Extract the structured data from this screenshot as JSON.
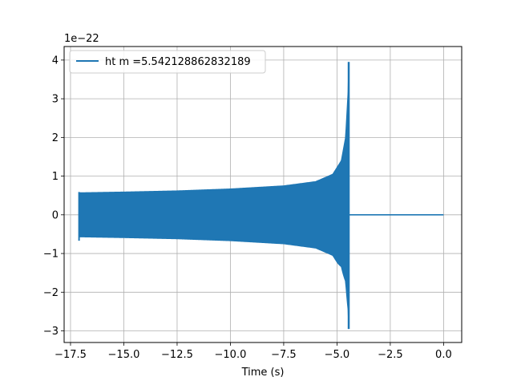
{
  "chart_data": {
    "type": "line",
    "title": "",
    "xlabel": "Time (s)",
    "ylabel": "",
    "y_offset_label": "1e−22",
    "xlim": [
      -17.8,
      0.85
    ],
    "ylim": [
      -3.3,
      4.35
    ],
    "x_ticks": [
      -17.5,
      -15.0,
      -12.5,
      -10.0,
      -7.5,
      -5.0,
      -2.5,
      0.0
    ],
    "x_tick_labels": [
      "−17.5",
      "−15.0",
      "−12.5",
      "−10.0",
      "−7.5",
      "−5.0",
      "−2.5",
      "0.0"
    ],
    "y_ticks": [
      -3,
      -2,
      -1,
      0,
      1,
      2,
      3,
      4
    ],
    "y_tick_labels": [
      "−3",
      "−2",
      "−1",
      "0",
      "1",
      "2",
      "3",
      "4"
    ],
    "grid": true,
    "legend_position": "top-left",
    "series": [
      {
        "name": "ht m =5.542128862832189",
        "color": "#1f77b4",
        "start_time": -17.1,
        "merger_time": -4.45,
        "end_time": 0.0,
        "envelope": [
          {
            "x": -17.1,
            "y": 0.57
          },
          {
            "x": -15.0,
            "y": 0.59
          },
          {
            "x": -12.5,
            "y": 0.62
          },
          {
            "x": -10.0,
            "y": 0.67
          },
          {
            "x": -7.5,
            "y": 0.75
          },
          {
            "x": -6.0,
            "y": 0.86
          },
          {
            "x": -5.2,
            "y": 1.05
          },
          {
            "x": -4.8,
            "y": 1.4
          },
          {
            "x": -4.6,
            "y": 2.0
          },
          {
            "x": -4.48,
            "y": 3.2
          },
          {
            "x": -4.45,
            "y": 3.95
          }
        ],
        "lower_peak": -2.95,
        "post_merger_value": 0.0
      }
    ]
  }
}
